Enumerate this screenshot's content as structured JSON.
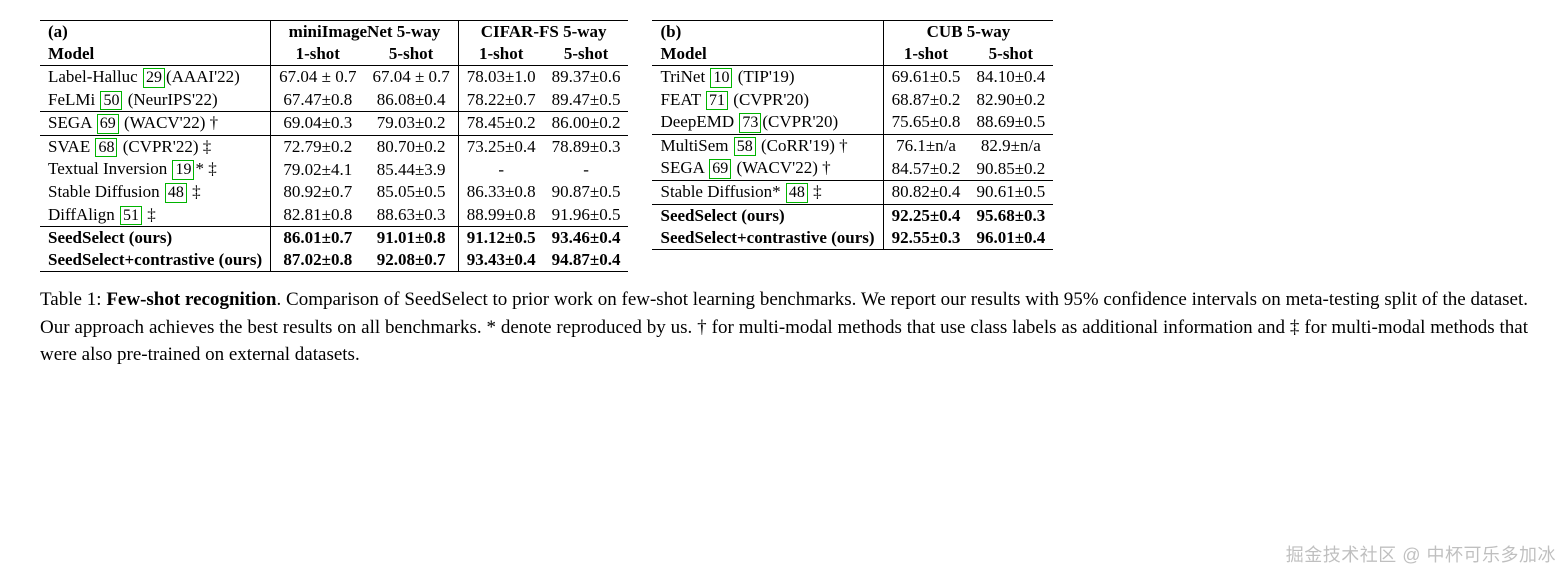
{
  "tableA": {
    "panel_label": "(a)",
    "model_header": "Model",
    "group1": "miniImageNet 5-way",
    "group2": "CIFAR-FS 5-way",
    "sub_1shot": "1-shot",
    "sub_5shot": "5-shot",
    "rows": [
      {
        "name": "Label-Halluc",
        "cite": "29",
        "venue": "(AAAI'22)",
        "suffix": "",
        "m1": "67.04 ± 0.7",
        "m5": "67.04 ± 0.7",
        "c1": "78.03±1.0",
        "c5": "89.37±0.6"
      },
      {
        "name": "FeLMi",
        "cite": "50",
        "venue": " (NeurIPS'22)",
        "suffix": "",
        "m1": "67.47±0.8",
        "m5": "86.08±0.4",
        "c1": "78.22±0.7",
        "c5": "89.47±0.5"
      },
      {
        "name": "SEGA",
        "cite": "69",
        "venue": " (WACV'22)",
        "suffix": " †",
        "m1": "69.04±0.3",
        "m5": "79.03±0.2",
        "c1": "78.45±0.2",
        "c5": "86.00±0.2"
      },
      {
        "name": "SVAE",
        "cite": "68",
        "venue": " (CVPR'22)",
        "suffix": " ‡",
        "m1": "72.79±0.2",
        "m5": "80.70±0.2",
        "c1": "73.25±0.4",
        "c5": "78.89±0.3"
      },
      {
        "name": "Textual Inversion",
        "cite": "19",
        "venue": "",
        "suffix": "* ‡",
        "m1": "79.02±4.1",
        "m5": "85.44±3.9",
        "c1": "-",
        "c5": "-"
      },
      {
        "name": "Stable Diffusion",
        "cite": "48",
        "venue": "",
        "suffix": " ‡",
        "m1": "80.92±0.7",
        "m5": "85.05±0.5",
        "c1": "86.33±0.8",
        "c5": "90.87±0.5"
      },
      {
        "name": "DiffAlign",
        "cite": "51",
        "venue": "",
        "suffix": " ‡",
        "m1": "82.81±0.8",
        "m5": "88.63±0.3",
        "c1": "88.99±0.8",
        "c5": "91.96±0.5"
      },
      {
        "bold": true,
        "name": "SeedSelect (ours)",
        "m1": "86.01±0.7",
        "m5": "91.01±0.8",
        "c1": "91.12±0.5",
        "c5": "93.46±0.4"
      },
      {
        "bold": true,
        "name": "SeedSelect+contrastive (ours)",
        "m1": "87.02±0.8",
        "m5": "92.08±0.7",
        "c1": "93.43±0.4",
        "c5": "94.87±0.4"
      }
    ]
  },
  "tableB": {
    "panel_label": "(b)",
    "model_header": "Model",
    "group1": "CUB 5-way",
    "sub_1shot": "1-shot",
    "sub_5shot": "5-shot",
    "rows": [
      {
        "name": "TriNet",
        "cite": "10",
        "venue": " (TIP'19)",
        "suffix": "",
        "c1": "69.61±0.5",
        "c5": "84.10±0.4"
      },
      {
        "name": "FEAT",
        "cite": "71",
        "venue": " (CVPR'20)",
        "suffix": "",
        "c1": "68.87±0.2",
        "c5": "82.90±0.2"
      },
      {
        "name": "DeepEMD",
        "cite": "73",
        "venue": "(CVPR'20)",
        "suffix": "",
        "c1": "75.65±0.8",
        "c5": "88.69±0.5"
      },
      {
        "name": "MultiSem",
        "cite": "58",
        "venue": " (CoRR'19)",
        "suffix": " †",
        "c1": "76.1±n/a",
        "c5": "82.9±n/a"
      },
      {
        "name": "SEGA",
        "cite": "69",
        "venue": " (WACV'22)",
        "suffix": " †",
        "c1": "84.57±0.2",
        "c5": "90.85±0.2"
      },
      {
        "name": "Stable Diffusion*",
        "cite": "48",
        "venue": "",
        "suffix": " ‡",
        "c1": "80.82±0.4",
        "c5": "90.61±0.5"
      },
      {
        "bold": true,
        "name": "SeedSelect (ours)",
        "c1": "92.25±0.4",
        "c5": "95.68±0.3"
      },
      {
        "bold": true,
        "name": "SeedSelect+contrastive (ours)",
        "c1": "92.55±0.3",
        "c5": "96.01±0.4"
      }
    ]
  },
  "caption": {
    "label": "Table 1:",
    "title": "Few-shot recognition",
    "body": ". Comparison of SeedSelect to prior work on few-shot learning benchmarks. We report our results with 95% confidence intervals on meta-testing split of the dataset. Our approach achieves the best results on all benchmarks. * denote reproduced by us. † for multi-modal methods that use class labels as additional information and ‡ for multi-modal methods that were also pre-trained on external datasets."
  },
  "watermark": "掘金技术社区 @ 中杯可乐多加冰",
  "colors": {
    "cite_border": "#00b400",
    "rule": "#000000"
  },
  "section_breaks_A_after_idx": [
    1,
    2,
    6
  ],
  "section_breaks_B_after_idx": [
    2,
    4,
    5
  ]
}
